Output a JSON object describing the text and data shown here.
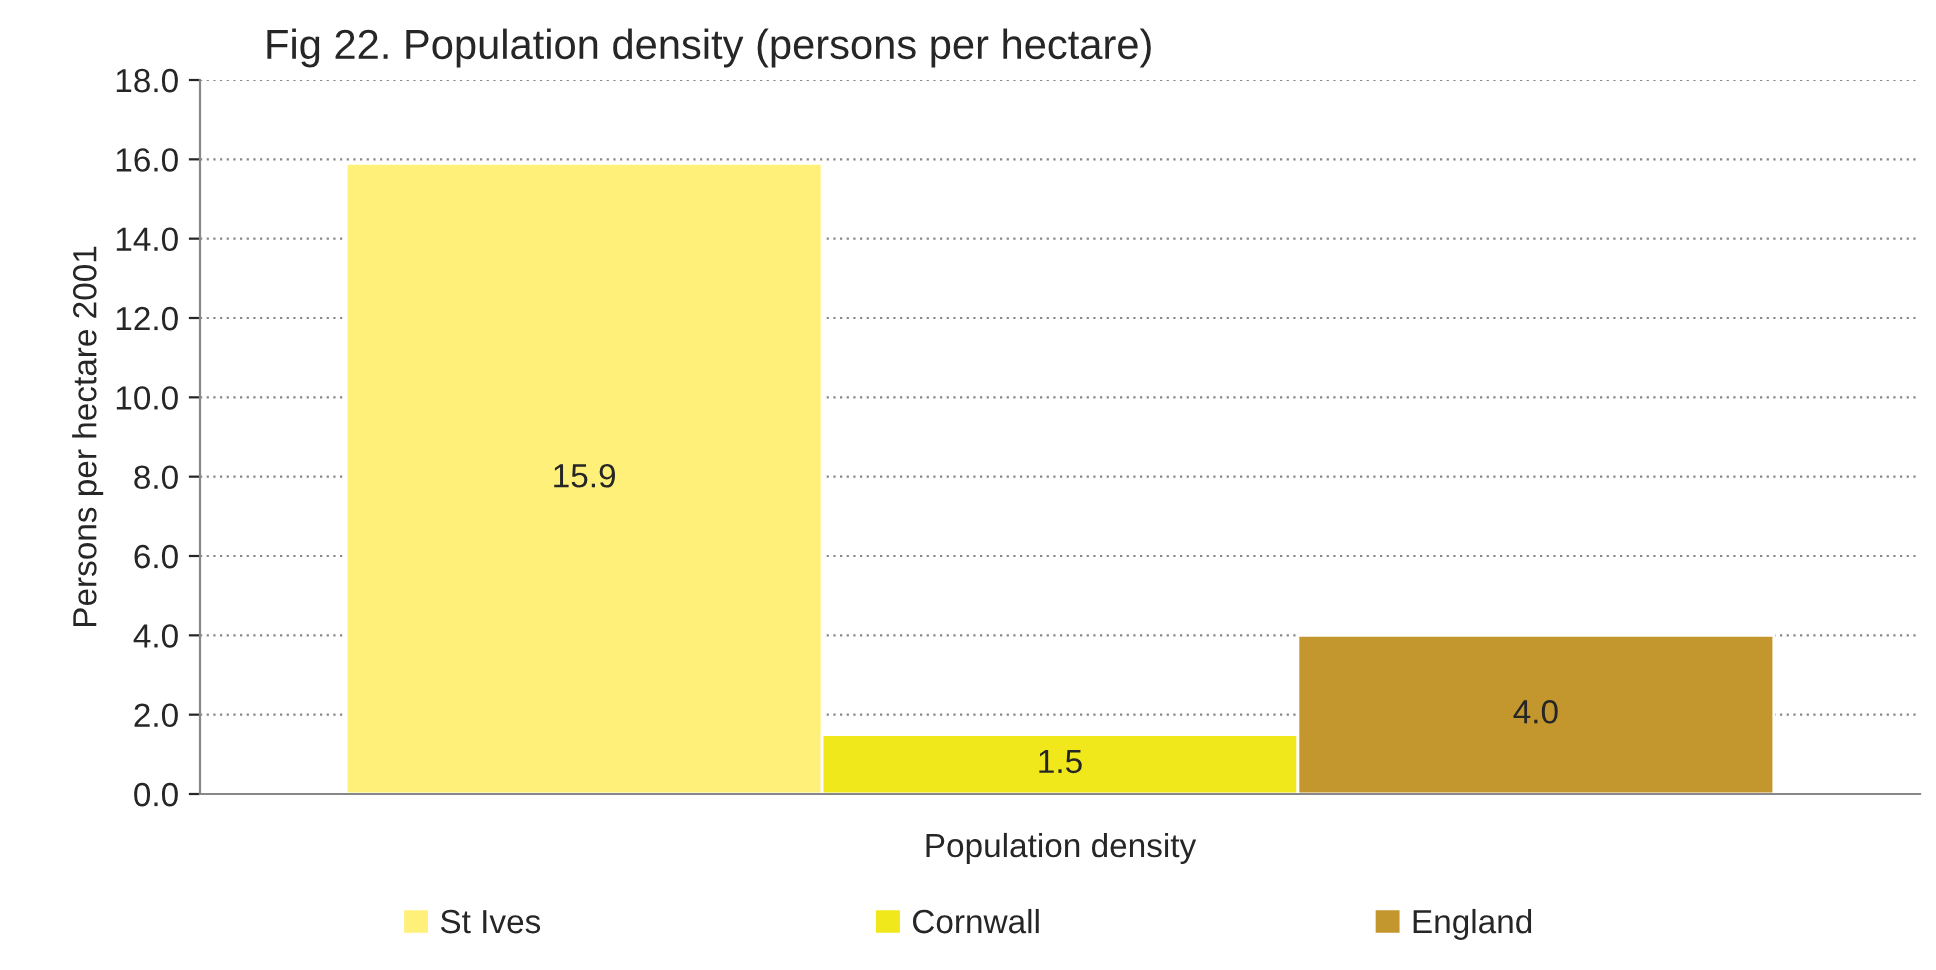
{
  "chart_data": {
    "type": "bar",
    "title": "Fig 22. Population density (persons per hectare)",
    "ylabel": "Persons per hectare 2001",
    "categories": [
      "Population density"
    ],
    "series": [
      {
        "name": "St Ives",
        "color": "#fff07a",
        "values": [
          15.9
        ],
        "value_labels": [
          "15.9"
        ]
      },
      {
        "name": "Cornwall",
        "color": "#f0e81a",
        "values": [
          1.5
        ],
        "value_labels": [
          "1.5"
        ]
      },
      {
        "name": "England",
        "color": "#c4962e",
        "values": [
          4.0
        ],
        "value_labels": [
          "4.0"
        ]
      }
    ],
    "ylim": [
      0,
      18
    ],
    "yticks": [
      {
        "value": 0,
        "label": "0.0"
      },
      {
        "value": 2,
        "label": "2.0"
      },
      {
        "value": 4,
        "label": "4.0"
      },
      {
        "value": 6,
        "label": "6.0"
      },
      {
        "value": 8,
        "label": "8.0"
      },
      {
        "value": 10,
        "label": "10.0"
      },
      {
        "value": 12,
        "label": "12.0"
      },
      {
        "value": 14,
        "label": "14.0"
      },
      {
        "value": 16,
        "label": "16.0"
      },
      {
        "value": 18,
        "label": "18.0"
      }
    ],
    "grid": "y",
    "legend": "bottom"
  }
}
